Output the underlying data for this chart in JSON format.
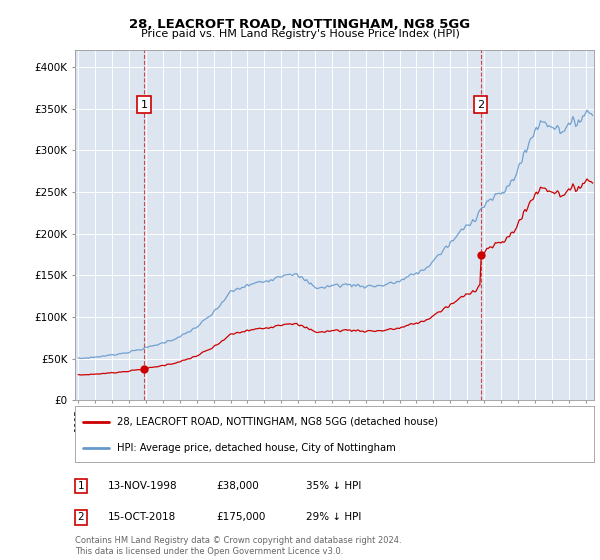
{
  "title1": "28, LEACROFT ROAD, NOTTINGHAM, NG8 5GG",
  "title2": "Price paid vs. HM Land Registry's House Price Index (HPI)",
  "background_color": "#dde6f0",
  "plot_bg_color": "#dde6f0",
  "red_color": "#cc0000",
  "blue_color": "#6699cc",
  "ylim": [
    0,
    420000
  ],
  "yticks": [
    0,
    50000,
    100000,
    150000,
    200000,
    250000,
    300000,
    350000,
    400000
  ],
  "ytick_labels": [
    "£0",
    "£50K",
    "£100K",
    "£150K",
    "£200K",
    "£250K",
    "£300K",
    "£350K",
    "£400K"
  ],
  "legend_label_red": "28, LEACROFT ROAD, NOTTINGHAM, NG8 5GG (detached house)",
  "legend_label_blue": "HPI: Average price, detached house, City of Nottingham",
  "sale1_year": 1998,
  "sale1_month": 11,
  "sale1_price": 38000,
  "sale2_year": 2018,
  "sale2_month": 10,
  "sale2_price": 175000,
  "footer": "Contains HM Land Registry data © Crown copyright and database right 2024.\nThis data is licensed under the Open Government Licence v3.0.",
  "xmin": 1995,
  "xmax": 2025
}
